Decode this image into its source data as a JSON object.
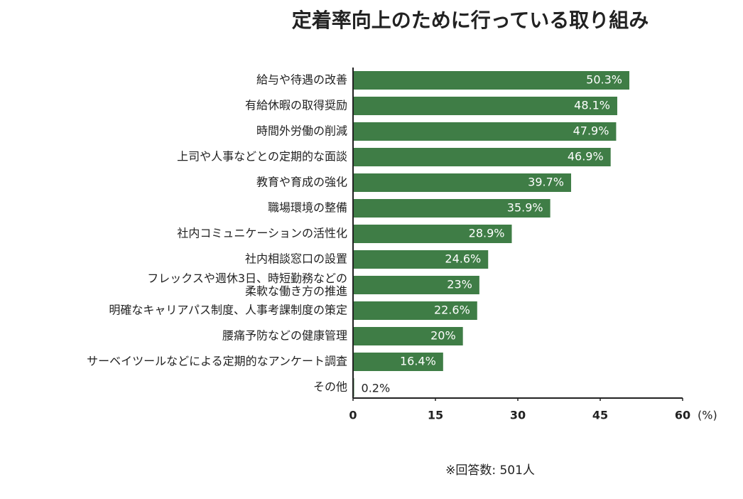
{
  "chart_data": {
    "type": "hbar",
    "title": "定着率向上のために行っている取り組み",
    "categories": [
      "給与や待遇の改善",
      "有給休暇の取得奨励",
      "時間外労働の削減",
      "上司や人事などとの定期的な面談",
      "教育や育成の強化",
      "職場環境の整備",
      "社内コミュニケーションの活性化",
      "社内相談窓口の設置",
      "フレックスや週休3日、時短勤務などの\n柔軟な働き方の推進",
      "明確なキャリアパス制度、人事考課制度の策定",
      "腰痛予防などの健康管理",
      "サーベイツールなどによる定期的なアンケート調査",
      "その他"
    ],
    "values": [
      50.3,
      48.1,
      47.9,
      46.9,
      39.7,
      35.9,
      28.9,
      24.6,
      23,
      22.6,
      20,
      16.4,
      0.2
    ],
    "value_labels": [
      "50.3%",
      "48.1%",
      "47.9%",
      "46.9%",
      "39.7%",
      "35.9%",
      "28.9%",
      "24.6%",
      "23%",
      "22.6%",
      "20%",
      "16.4%",
      "0.2%"
    ],
    "color": "#3f7d46",
    "xlim": [
      0,
      60
    ],
    "xticks": [
      0,
      15,
      30,
      45,
      60
    ],
    "x_unit": "(%)",
    "note": "※回答数: 501人"
  }
}
